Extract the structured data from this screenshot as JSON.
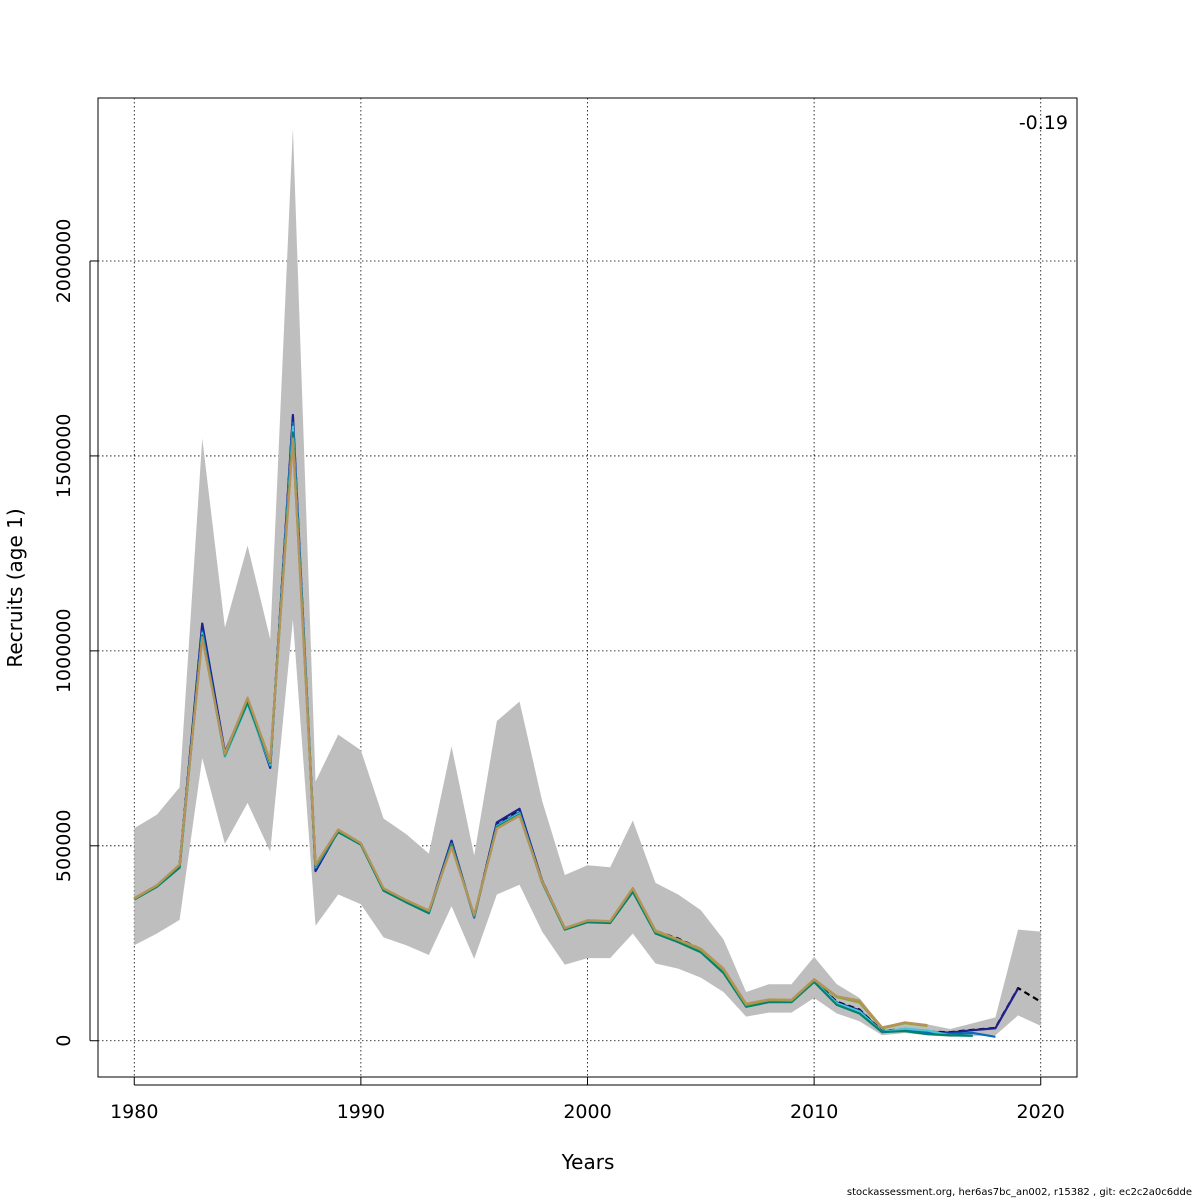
{
  "chart_data": {
    "type": "line",
    "title": "",
    "xlabel": "Years",
    "ylabel": "Recruits (age 1)",
    "annotation": "-0.19",
    "footer": "stockassessment.org, her6as7bc_an002, r15382 , git: ec2c2a0c6dde",
    "xlim": [
      1978.4,
      2021.6
    ],
    "ylim": [
      -93000,
      2418000
    ],
    "x_ticks": [
      "1980",
      "1990",
      "2000",
      "2010",
      "2020"
    ],
    "y_ticks": [
      "0",
      "500000",
      "1000000",
      "1500000",
      "2000000"
    ],
    "grid": true,
    "legend": "none",
    "band": {
      "color": "#bebebe",
      "x": [
        1980,
        1981,
        1982,
        1983,
        1984,
        1985,
        1986,
        1987,
        1988,
        1989,
        1990,
        1991,
        1992,
        1993,
        1994,
        1995,
        1996,
        1997,
        1998,
        1999,
        2000,
        2001,
        2002,
        2003,
        2004,
        2005,
        2006,
        2007,
        2008,
        2009,
        2010,
        2011,
        2012,
        2013,
        2014,
        2015,
        2016,
        2017,
        2018,
        2019,
        2020
      ],
      "upper": [
        545000,
        580000,
        650000,
        1545000,
        1060000,
        1270000,
        1030000,
        2340000,
        665000,
        785000,
        745000,
        570000,
        530000,
        480000,
        755000,
        475000,
        820000,
        870000,
        615000,
        425000,
        450000,
        445000,
        565000,
        405000,
        375000,
        335000,
        260000,
        125000,
        145000,
        145000,
        215000,
        145000,
        110000,
        35000,
        50000,
        42000,
        30000,
        45000,
        60000,
        285000,
        280000
      ],
      "lower": [
        245000,
        275000,
        310000,
        725000,
        505000,
        610000,
        485000,
        1080000,
        295000,
        375000,
        350000,
        265000,
        245000,
        220000,
        345000,
        210000,
        375000,
        400000,
        280000,
        195000,
        212000,
        212000,
        275000,
        198000,
        185000,
        162000,
        125000,
        62000,
        72000,
        72000,
        110000,
        70000,
        50000,
        14000,
        20000,
        14000,
        10000,
        12000,
        14000,
        65000,
        38000
      ]
    },
    "series": [
      {
        "color": "#000000",
        "dashed": true,
        "x": [
          1980,
          1981,
          1982,
          1983,
          1984,
          1985,
          1986,
          1987,
          1988,
          1989,
          1990,
          1991,
          1992,
          1993,
          1994,
          1995,
          1996,
          1997,
          1998,
          1999,
          2000,
          2001,
          2002,
          2003,
          2004,
          2005,
          2006,
          2007,
          2008,
          2009,
          2010,
          2011,
          2012,
          2013,
          2014,
          2015,
          2016,
          2017,
          2018,
          2019,
          2020
        ],
        "values": [
          365000,
          398000,
          450000,
          1065000,
          735000,
          870000,
          705000,
          1600000,
          445000,
          540000,
          505000,
          388000,
          358000,
          330000,
          510000,
          318000,
          558000,
          592000,
          410000,
          288000,
          308000,
          305000,
          385000,
          282000,
          262000,
          235000,
          180000,
          90000,
          103000,
          103000,
          155000,
          100000,
          80000,
          25000,
          30000,
          23000,
          22000,
          28000,
          33000,
          135000,
          100000
        ]
      },
      {
        "color": "#1f1f8f",
        "dashed": false,
        "x": [
          1980,
          1981,
          1982,
          1983,
          1984,
          1985,
          1986,
          1987,
          1988,
          1989,
          1990,
          1991,
          1992,
          1993,
          1994,
          1995,
          1996,
          1997,
          1998,
          1999,
          2000,
          2001,
          2002,
          2003,
          2004,
          2005,
          2006,
          2007,
          2008,
          2009,
          2010,
          2011,
          2012,
          2013,
          2014,
          2015,
          2016,
          2017,
          2018,
          2019
        ],
        "values": [
          365000,
          398000,
          448000,
          1070000,
          740000,
          872000,
          700000,
          1605000,
          435000,
          538000,
          506000,
          388000,
          358000,
          330000,
          513000,
          316000,
          560000,
          595000,
          410000,
          288000,
          307000,
          305000,
          386000,
          280000,
          260000,
          234000,
          180000,
          90000,
          102000,
          102000,
          154000,
          98000,
          78000,
          24000,
          29000,
          22000,
          21000,
          27000,
          32000,
          134000
        ]
      },
      {
        "color": "#0a6bbd",
        "dashed": false,
        "x": [
          1980,
          1981,
          1982,
          1983,
          1984,
          1985,
          1986,
          1987,
          1988,
          1989,
          1990,
          1991,
          1992,
          1993,
          1994,
          1995,
          1996,
          1997,
          1998,
          1999,
          2000,
          2001,
          2002,
          2003,
          2004,
          2005,
          2006,
          2007,
          2008,
          2009,
          2010,
          2011,
          2012,
          2013,
          2014,
          2015,
          2016,
          2017,
          2018
        ],
        "values": [
          364000,
          397000,
          447000,
          1050000,
          730000,
          866000,
          705000,
          1585000,
          443000,
          537000,
          505000,
          386000,
          357000,
          329000,
          506000,
          317000,
          552000,
          586000,
          408000,
          287000,
          306000,
          304000,
          384000,
          278000,
          257000,
          231000,
          178000,
          89000,
          101000,
          101000,
          153000,
          97000,
          76000,
          23000,
          28000,
          20000,
          18000,
          20000,
          10000
        ]
      },
      {
        "color": "#4fc3d9",
        "dashed": false,
        "x": [
          1980,
          1981,
          1982,
          1983,
          1984,
          1985,
          1986,
          1987,
          1988,
          1989,
          1990,
          1991,
          1992,
          1993,
          1994,
          1995,
          1996,
          1997,
          1998,
          1999,
          2000,
          2001,
          2002,
          2003,
          2004,
          2005,
          2006,
          2007,
          2008,
          2009,
          2010,
          2011,
          2012,
          2013,
          2014,
          2015,
          2016,
          2017
        ],
        "values": [
          363000,
          396000,
          446000,
          1045000,
          728000,
          864000,
          708000,
          1575000,
          446000,
          536000,
          504000,
          386000,
          356000,
          328000,
          504000,
          319000,
          550000,
          583000,
          407000,
          286000,
          305000,
          303000,
          383000,
          277000,
          255000,
          229000,
          176000,
          88000,
          100000,
          100000,
          152000,
          96000,
          75000,
          23000,
          31000,
          26000,
          14000,
          12000
        ]
      },
      {
        "color": "#00826e",
        "dashed": false,
        "x": [
          1980,
          1981,
          1982,
          1983,
          1984,
          1985,
          1986,
          1987,
          1988,
          1989,
          1990,
          1991,
          1992,
          1993,
          1994,
          1995,
          1996,
          1997,
          1998,
          1999,
          2000,
          2001,
          2002,
          2003,
          2004,
          2005,
          2006,
          2007,
          2008,
          2009,
          2010,
          2011,
          2012,
          2013,
          2014,
          2015,
          2016,
          2017
        ],
        "values": [
          362000,
          395000,
          444000,
          1040000,
          732000,
          868000,
          712000,
          1560000,
          448000,
          535000,
          503000,
          385000,
          355000,
          327000,
          503000,
          320000,
          548000,
          580000,
          406000,
          285000,
          304000,
          302000,
          382000,
          275000,
          253000,
          227000,
          174000,
          87000,
          99000,
          99000,
          151000,
          92000,
          70000,
          22000,
          25000,
          17000,
          14000,
          13000
        ]
      },
      {
        "color": "#8fa33a",
        "dashed": false,
        "x": [
          1980,
          1981,
          1982,
          1983,
          1984,
          1985,
          1986,
          1987,
          1988,
          1989,
          1990,
          1991,
          1992,
          1993,
          1994,
          1995,
          1996,
          1997,
          1998,
          1999,
          2000,
          2001,
          2002,
          2003,
          2004,
          2005,
          2006,
          2007,
          2008,
          2009,
          2010,
          2011,
          2012,
          2013,
          2014,
          2015
        ],
        "values": [
          364000,
          398000,
          451000,
          1035000,
          734000,
          878000,
          715000,
          1545000,
          450000,
          540000,
          506000,
          390000,
          360000,
          333000,
          498000,
          322000,
          545000,
          578000,
          408000,
          288000,
          308000,
          306000,
          390000,
          280000,
          258000,
          233000,
          182000,
          92000,
          104000,
          103000,
          156000,
          112000,
          98000,
          32000,
          45000,
          38000
        ]
      },
      {
        "color": "#b5935a",
        "dashed": false,
        "x": [
          1980,
          1981,
          1982,
          1983,
          1984,
          1985,
          1986,
          1987,
          1988,
          1989,
          1990,
          1991,
          1992,
          1993,
          1994,
          1995,
          1996,
          1997,
          1998,
          1999,
          2000,
          2001,
          2002,
          2003,
          2004,
          2005,
          2006,
          2007,
          2008,
          2009,
          2010,
          2011,
          2012,
          2013,
          2014,
          2015
        ],
        "values": [
          366000,
          399000,
          452000,
          1032000,
          737000,
          880000,
          718000,
          1540000,
          452000,
          542000,
          507000,
          391000,
          361000,
          334000,
          497000,
          323000,
          544000,
          577000,
          409000,
          289000,
          309000,
          307000,
          392000,
          283000,
          260000,
          236000,
          185000,
          95000,
          106000,
          105000,
          158000,
          114000,
          103000,
          34000,
          47000,
          40000
        ]
      }
    ]
  }
}
